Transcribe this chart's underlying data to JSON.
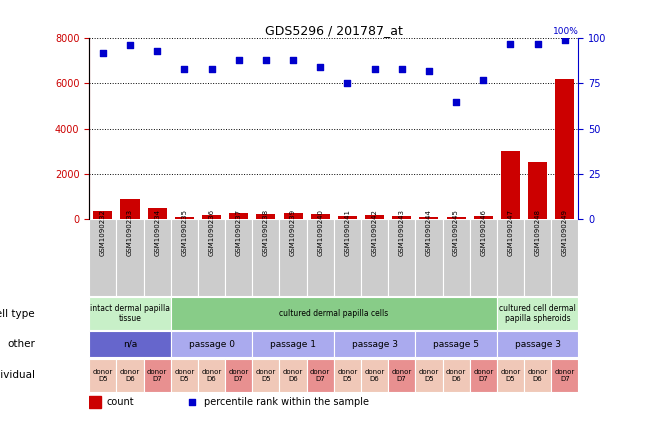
{
  "title": "GDS5296 / 201787_at",
  "samples": [
    "GSM1090232",
    "GSM1090233",
    "GSM1090234",
    "GSM1090235",
    "GSM1090236",
    "GSM1090237",
    "GSM1090238",
    "GSM1090239",
    "GSM1090240",
    "GSM1090241",
    "GSM1090242",
    "GSM1090243",
    "GSM1090244",
    "GSM1090245",
    "GSM1090246",
    "GSM1090247",
    "GSM1090248",
    "GSM1090249"
  ],
  "counts": [
    350,
    900,
    520,
    120,
    200,
    280,
    220,
    260,
    230,
    160,
    180,
    170,
    120,
    110,
    130,
    3000,
    2550,
    6200
  ],
  "percentile": [
    92,
    96,
    93,
    83,
    83,
    88,
    88,
    88,
    84,
    75,
    83,
    83,
    82,
    65,
    77,
    97,
    97,
    99
  ],
  "ylim_left": [
    0,
    8000
  ],
  "ylim_right": [
    0,
    100
  ],
  "yticks_left": [
    0,
    2000,
    4000,
    6000,
    8000
  ],
  "yticks_right": [
    0,
    25,
    50,
    75,
    100
  ],
  "cell_type_groups": [
    {
      "label": "intact dermal papilla\ntissue",
      "start": 0,
      "end": 3,
      "color": "#c8f0c8"
    },
    {
      "label": "cultured dermal papilla cells",
      "start": 3,
      "end": 15,
      "color": "#88cc88"
    },
    {
      "label": "cultured cell dermal\npapilla spheroids",
      "start": 15,
      "end": 18,
      "color": "#c8f0c8"
    }
  ],
  "other_groups": [
    {
      "label": "n/a",
      "start": 0,
      "end": 3,
      "color": "#6666cc"
    },
    {
      "label": "passage 0",
      "start": 3,
      "end": 6,
      "color": "#aaaaee"
    },
    {
      "label": "passage 1",
      "start": 6,
      "end": 9,
      "color": "#aaaaee"
    },
    {
      "label": "passage 3",
      "start": 9,
      "end": 12,
      "color": "#aaaaee"
    },
    {
      "label": "passage 5",
      "start": 12,
      "end": 15,
      "color": "#aaaaee"
    },
    {
      "label": "passage 3",
      "start": 15,
      "end": 18,
      "color": "#aaaaee"
    }
  ],
  "individual_groups": [
    {
      "label": "donor\nD5",
      "start": 0,
      "end": 1,
      "color": "#f0c8b8"
    },
    {
      "label": "donor\nD6",
      "start": 1,
      "end": 2,
      "color": "#f0c8b8"
    },
    {
      "label": "donor\nD7",
      "start": 2,
      "end": 3,
      "color": "#e89090"
    },
    {
      "label": "donor\nD5",
      "start": 3,
      "end": 4,
      "color": "#f0c8b8"
    },
    {
      "label": "donor\nD6",
      "start": 4,
      "end": 5,
      "color": "#f0c8b8"
    },
    {
      "label": "donor\nD7",
      "start": 5,
      "end": 6,
      "color": "#e89090"
    },
    {
      "label": "donor\nD5",
      "start": 6,
      "end": 7,
      "color": "#f0c8b8"
    },
    {
      "label": "donor\nD6",
      "start": 7,
      "end": 8,
      "color": "#f0c8b8"
    },
    {
      "label": "donor\nD7",
      "start": 8,
      "end": 9,
      "color": "#e89090"
    },
    {
      "label": "donor\nD5",
      "start": 9,
      "end": 10,
      "color": "#f0c8b8"
    },
    {
      "label": "donor\nD6",
      "start": 10,
      "end": 11,
      "color": "#f0c8b8"
    },
    {
      "label": "donor\nD7",
      "start": 11,
      "end": 12,
      "color": "#e89090"
    },
    {
      "label": "donor\nD5",
      "start": 12,
      "end": 13,
      "color": "#f0c8b8"
    },
    {
      "label": "donor\nD6",
      "start": 13,
      "end": 14,
      "color": "#f0c8b8"
    },
    {
      "label": "donor\nD7",
      "start": 14,
      "end": 15,
      "color": "#e89090"
    },
    {
      "label": "donor\nD5",
      "start": 15,
      "end": 16,
      "color": "#f0c8b8"
    },
    {
      "label": "donor\nD6",
      "start": 16,
      "end": 17,
      "color": "#f0c8b8"
    },
    {
      "label": "donor\nD7",
      "start": 17,
      "end": 18,
      "color": "#e89090"
    }
  ],
  "bar_color": "#cc0000",
  "dot_color": "#0000cc",
  "axis_color_left": "#cc0000",
  "axis_color_right": "#0000cc",
  "bg_color": "#ffffff",
  "grid_color": "#000000",
  "row_labels": [
    "cell type",
    "other",
    "individual"
  ],
  "legend_count_color": "#cc0000",
  "legend_pct_color": "#0000cc",
  "sample_box_color": "#cccccc"
}
